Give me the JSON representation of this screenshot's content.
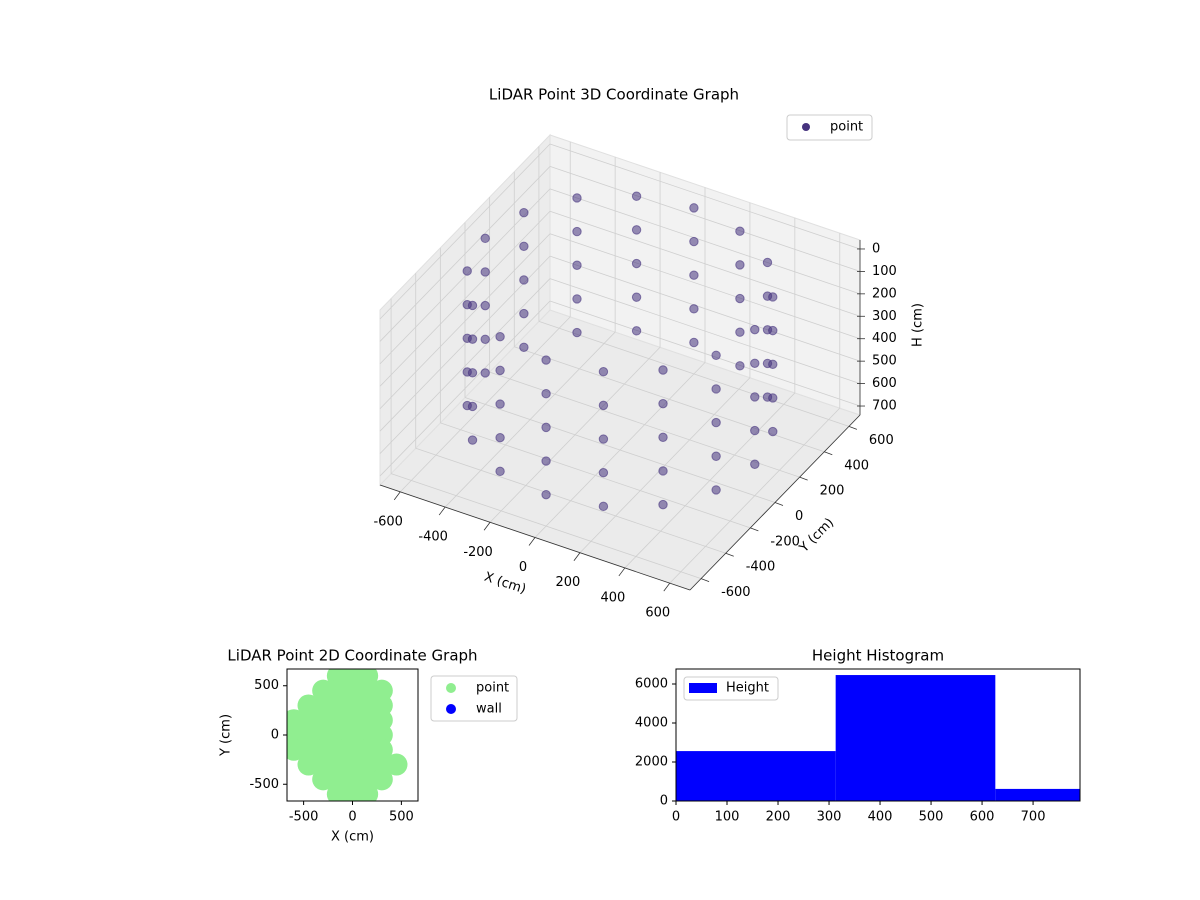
{
  "chart_data": [
    {
      "type": "scatter3d",
      "title": "LiDAR Point 3D Coordinate Graph",
      "xlabel": "X (cm)",
      "ylabel": "Y (cm)",
      "zlabel": "H (cm)",
      "xlim": [
        -690,
        690
      ],
      "ylim": [
        -690,
        690
      ],
      "zlim": [
        -40,
        740
      ],
      "z_inverted": true,
      "xticks": [
        -600,
        -400,
        -200,
        0,
        200,
        400,
        600
      ],
      "yticks": [
        -600,
        -400,
        -200,
        0,
        200,
        400,
        600
      ],
      "zticks": [
        0,
        100,
        200,
        300,
        400,
        500,
        600,
        700
      ],
      "grid": true,
      "legend": "upper right",
      "series": [
        {
          "name": "point",
          "color": "#46337e",
          "x": [
            600,
            554,
            424,
            230,
            0,
            -230,
            -424,
            -554,
            -600,
            -554,
            -424,
            -230,
            0,
            230,
            424,
            554,
            600,
            554,
            424,
            230,
            0,
            -230,
            -424,
            -554,
            -600,
            -554,
            -424,
            -230,
            0,
            230,
            424,
            554,
            600,
            554,
            424,
            230,
            0,
            -230,
            -424,
            -554,
            -600,
            -554,
            -424,
            -230,
            0,
            230,
            424,
            554,
            600,
            554,
            424,
            230,
            0,
            -230,
            -424,
            -554,
            -600,
            -554,
            -424,
            -230,
            0,
            230,
            424,
            554,
            600,
            554,
            424,
            230,
            0,
            -230,
            -424,
            -554,
            -600,
            -554,
            -424,
            -230,
            0,
            230,
            424,
            554
          ],
          "y": [
            0,
            230,
            424,
            554,
            600,
            554,
            424,
            230,
            0,
            -230,
            -424,
            -554,
            -600,
            -554,
            -424,
            -230,
            0,
            230,
            424,
            554,
            600,
            554,
            424,
            230,
            0,
            -230,
            -424,
            -554,
            -600,
            -554,
            -424,
            -230,
            0,
            230,
            424,
            554,
            600,
            554,
            424,
            230,
            0,
            -230,
            -424,
            -554,
            -600,
            -554,
            -424,
            -230,
            0,
            230,
            424,
            554,
            600,
            554,
            424,
            230,
            0,
            -230,
            -424,
            -554,
            -600,
            -554,
            -424,
            -230,
            0,
            230,
            424,
            554,
            600,
            554,
            424,
            230,
            0,
            -230,
            -424,
            -554,
            -600,
            -554,
            -424,
            -230
          ],
          "z": [
            0,
            0,
            0,
            0,
            0,
            0,
            0,
            0,
            0,
            0,
            0,
            0,
            0,
            0,
            0,
            0,
            150,
            150,
            150,
            150,
            150,
            150,
            150,
            150,
            150,
            150,
            150,
            150,
            150,
            150,
            150,
            150,
            300,
            300,
            300,
            300,
            300,
            300,
            300,
            300,
            300,
            300,
            300,
            300,
            300,
            300,
            300,
            300,
            450,
            450,
            450,
            450,
            450,
            450,
            450,
            450,
            450,
            450,
            450,
            450,
            450,
            450,
            450,
            450,
            600,
            600,
            600,
            600,
            600,
            600,
            600,
            600,
            600,
            600,
            600,
            600,
            600,
            600,
            600,
            600
          ]
        }
      ]
    },
    {
      "type": "scatter",
      "title": "LiDAR Point 2D Coordinate Graph",
      "xlabel": "X (cm)",
      "ylabel": "Y (cm)",
      "xlim": [
        -670,
        670
      ],
      "ylim": [
        -670,
        670
      ],
      "xticks": [
        -500,
        0,
        500
      ],
      "yticks": [
        -500,
        0,
        500
      ],
      "legend": "outside right",
      "series": [
        {
          "name": "point",
          "color": "#90ee90",
          "x": [
            -150,
            0,
            150,
            -300,
            -150,
            0,
            150,
            300,
            -450,
            -300,
            -150,
            0,
            150,
            300,
            -600,
            -450,
            -300,
            -150,
            0,
            150,
            300,
            -600,
            -450,
            -300,
            -150,
            0,
            150,
            300,
            -600,
            -450,
            -300,
            -150,
            0,
            150,
            300,
            -450,
            -300,
            -150,
            0,
            150,
            300,
            450,
            -300,
            -150,
            0,
            150,
            300,
            -150,
            0,
            150
          ],
          "y": [
            600,
            600,
            600,
            450,
            450,
            450,
            450,
            450,
            300,
            300,
            300,
            300,
            300,
            300,
            150,
            150,
            150,
            150,
            150,
            150,
            150,
            0,
            0,
            0,
            0,
            0,
            0,
            0,
            -150,
            -150,
            -150,
            -150,
            -150,
            -150,
            -150,
            -300,
            -300,
            -300,
            -300,
            -300,
            -300,
            -300,
            -450,
            -450,
            -450,
            -450,
            -450,
            -600,
            -600,
            -600
          ]
        },
        {
          "name": "wall",
          "color": "#0000ff",
          "x": [],
          "y": []
        }
      ]
    },
    {
      "type": "histogram",
      "title": "Height Histogram",
      "name": "Height",
      "color": "#0000ff",
      "bins": [
        0,
        313,
        626,
        792
      ],
      "values": [
        2560,
        6460,
        620
      ],
      "xlim": [
        0,
        792
      ],
      "ylim": [
        0,
        6770
      ],
      "xticks": [
        0,
        100,
        200,
        300,
        400,
        500,
        600,
        700
      ],
      "yticks": [
        0,
        2000,
        4000,
        6000
      ],
      "legend": "upper left"
    }
  ]
}
